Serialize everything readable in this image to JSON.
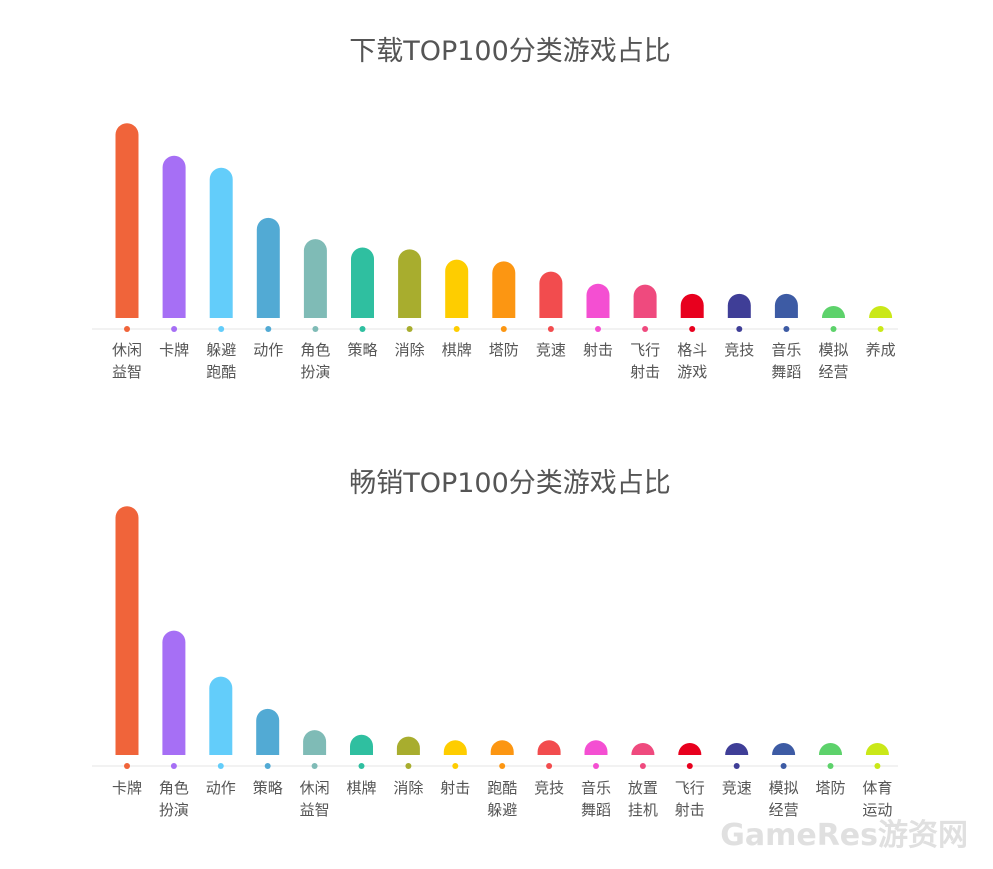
{
  "chart_data": [
    {
      "type": "bar",
      "title": "下载TOP100分类游戏占比",
      "categories": [
        "休闲益智",
        "卡牌",
        "躲避跑酷",
        "动作",
        "角色扮演",
        "策略",
        "消除",
        "棋牌",
        "塔防",
        "竞速",
        "射击",
        "飞行射击",
        "格斗游戏",
        "竞技",
        "音乐舞蹈",
        "模拟经营",
        "养成"
      ],
      "values": [
        21.0,
        17.5,
        16.2,
        10.8,
        8.5,
        7.6,
        7.4,
        6.3,
        6.1,
        5.0,
        3.7,
        3.6,
        2.6,
        2.6,
        2.6,
        1.2,
        1.2
      ],
      "ylim": [
        0,
        22
      ],
      "grid": false,
      "legend": "none"
    },
    {
      "type": "bar",
      "title": "畅销TOP100分类游戏占比",
      "categories": [
        "卡牌",
        "角色扮演",
        "动作",
        "策略",
        "休闲益智",
        "棋牌",
        "消除",
        "射击",
        "跑酷躲避",
        "竞技",
        "音乐舞蹈",
        "放置挂机",
        "飞行射击",
        "竞速",
        "模拟经营",
        "塔防",
        "体育运动"
      ],
      "values": [
        27.0,
        13.5,
        8.5,
        5.0,
        2.7,
        2.2,
        2.0,
        1.6,
        1.6,
        1.6,
        1.6,
        0.6,
        0.6,
        0.6,
        0.6,
        0.6,
        0.6
      ],
      "ylim": [
        0,
        28
      ],
      "grid": false,
      "legend": "none"
    }
  ],
  "colors": [
    "#f0643a",
    "#a66ff5",
    "#63cdfa",
    "#52aad4",
    "#7fbbb6",
    "#2fbfa0",
    "#a8ad2e",
    "#fecd00",
    "#fc9612",
    "#f24c4e",
    "#f44fd2",
    "#ef4a7e",
    "#e8001e",
    "#3f3e97",
    "#3d5ba4",
    "#5dd26b",
    "#cae818"
  ],
  "watermark": "GameRes游资网"
}
